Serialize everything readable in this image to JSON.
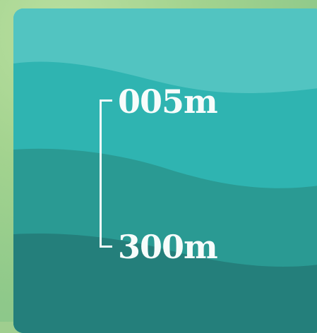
{
  "depth_scale": {
    "top_label": "005m",
    "bottom_label": "300m"
  },
  "colors": {
    "background": "#9fce8f",
    "layer_1": "#52c4c1",
    "layer_2": "#2fb4b1",
    "layer_3": "#2a9a93",
    "layer_4": "#247f7b",
    "text": "#f7fcfb"
  }
}
